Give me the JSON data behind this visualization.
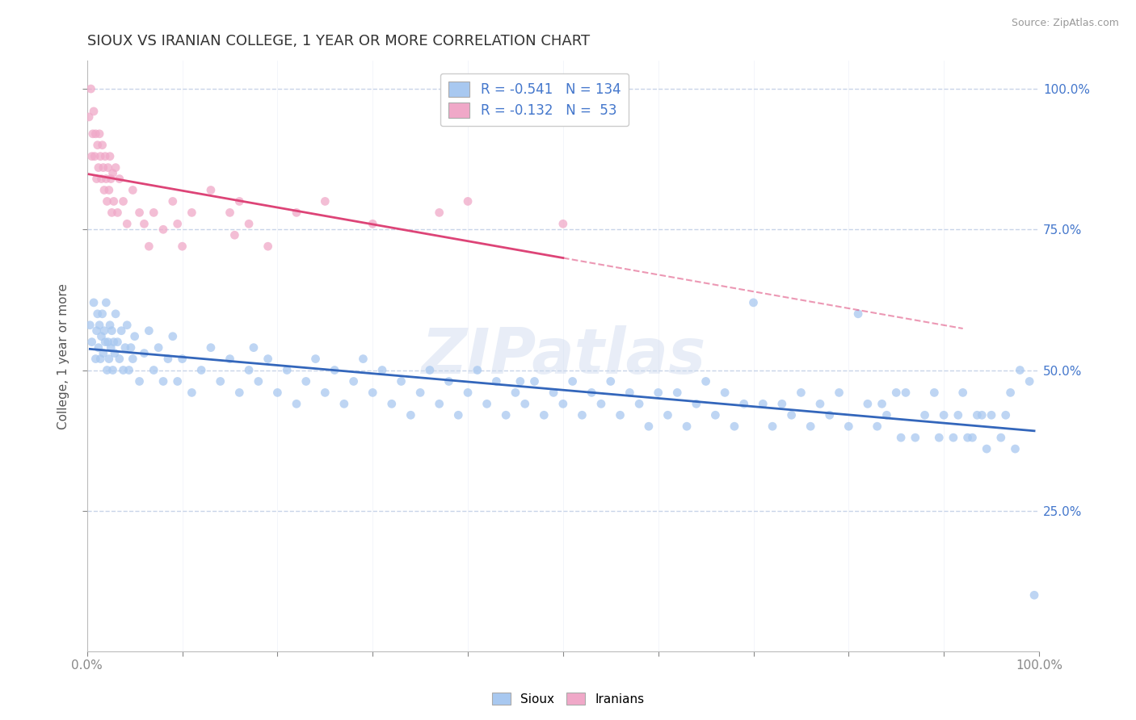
{
  "title": "SIOUX VS IRANIAN COLLEGE, 1 YEAR OR MORE CORRELATION CHART",
  "source_text": "Source: ZipAtlas.com",
  "ylabel": "College, 1 year or more",
  "xlim": [
    0.0,
    1.0
  ],
  "ylim": [
    0.0,
    1.05
  ],
  "x_tick_positions": [
    0.0,
    0.1,
    0.2,
    0.3,
    0.4,
    0.5,
    0.6,
    0.7,
    0.8,
    0.9,
    1.0
  ],
  "x_tick_labels": [
    "0.0%",
    "",
    "",
    "",
    "",
    "",
    "",
    "",
    "",
    "",
    "100.0%"
  ],
  "y_tick_positions": [
    0.25,
    0.5,
    0.75,
    1.0
  ],
  "y_tick_labels": [
    "25.0%",
    "50.0%",
    "75.0%",
    "100.0%"
  ],
  "watermark_text": "ZIPatlas",
  "legend_labels": [
    "Sioux",
    "Iranians"
  ],
  "blue_R": "-0.541",
  "blue_N": "134",
  "pink_R": "-0.132",
  "pink_N": "53",
  "blue_color": "#a8c8f0",
  "pink_color": "#f0a8c8",
  "blue_line_color": "#3366bb",
  "pink_line_color": "#dd4477",
  "background_color": "#ffffff",
  "grid_color": "#c8d4e8",
  "title_color": "#333333",
  "tick_color": "#4477cc",
  "blue_points": [
    [
      0.003,
      0.58
    ],
    [
      0.005,
      0.55
    ],
    [
      0.007,
      0.62
    ],
    [
      0.009,
      0.52
    ],
    [
      0.01,
      0.57
    ],
    [
      0.011,
      0.6
    ],
    [
      0.012,
      0.54
    ],
    [
      0.013,
      0.58
    ],
    [
      0.014,
      0.52
    ],
    [
      0.015,
      0.56
    ],
    [
      0.016,
      0.6
    ],
    [
      0.017,
      0.53
    ],
    [
      0.018,
      0.57
    ],
    [
      0.019,
      0.55
    ],
    [
      0.02,
      0.62
    ],
    [
      0.021,
      0.5
    ],
    [
      0.022,
      0.55
    ],
    [
      0.023,
      0.52
    ],
    [
      0.024,
      0.58
    ],
    [
      0.025,
      0.54
    ],
    [
      0.026,
      0.57
    ],
    [
      0.027,
      0.5
    ],
    [
      0.028,
      0.55
    ],
    [
      0.029,
      0.53
    ],
    [
      0.03,
      0.6
    ],
    [
      0.032,
      0.55
    ],
    [
      0.034,
      0.52
    ],
    [
      0.036,
      0.57
    ],
    [
      0.038,
      0.5
    ],
    [
      0.04,
      0.54
    ],
    [
      0.042,
      0.58
    ],
    [
      0.044,
      0.5
    ],
    [
      0.046,
      0.54
    ],
    [
      0.048,
      0.52
    ],
    [
      0.05,
      0.56
    ],
    [
      0.055,
      0.48
    ],
    [
      0.06,
      0.53
    ],
    [
      0.065,
      0.57
    ],
    [
      0.07,
      0.5
    ],
    [
      0.075,
      0.54
    ],
    [
      0.08,
      0.48
    ],
    [
      0.085,
      0.52
    ],
    [
      0.09,
      0.56
    ],
    [
      0.095,
      0.48
    ],
    [
      0.1,
      0.52
    ],
    [
      0.11,
      0.46
    ],
    [
      0.12,
      0.5
    ],
    [
      0.13,
      0.54
    ],
    [
      0.14,
      0.48
    ],
    [
      0.15,
      0.52
    ],
    [
      0.16,
      0.46
    ],
    [
      0.17,
      0.5
    ],
    [
      0.175,
      0.54
    ],
    [
      0.18,
      0.48
    ],
    [
      0.19,
      0.52
    ],
    [
      0.2,
      0.46
    ],
    [
      0.21,
      0.5
    ],
    [
      0.22,
      0.44
    ],
    [
      0.23,
      0.48
    ],
    [
      0.24,
      0.52
    ],
    [
      0.25,
      0.46
    ],
    [
      0.26,
      0.5
    ],
    [
      0.27,
      0.44
    ],
    [
      0.28,
      0.48
    ],
    [
      0.29,
      0.52
    ],
    [
      0.3,
      0.46
    ],
    [
      0.31,
      0.5
    ],
    [
      0.32,
      0.44
    ],
    [
      0.33,
      0.48
    ],
    [
      0.34,
      0.42
    ],
    [
      0.35,
      0.46
    ],
    [
      0.36,
      0.5
    ],
    [
      0.37,
      0.44
    ],
    [
      0.38,
      0.48
    ],
    [
      0.39,
      0.42
    ],
    [
      0.4,
      0.46
    ],
    [
      0.41,
      0.5
    ],
    [
      0.42,
      0.44
    ],
    [
      0.43,
      0.48
    ],
    [
      0.44,
      0.42
    ],
    [
      0.45,
      0.46
    ],
    [
      0.455,
      0.48
    ],
    [
      0.46,
      0.44
    ],
    [
      0.47,
      0.48
    ],
    [
      0.48,
      0.42
    ],
    [
      0.49,
      0.46
    ],
    [
      0.5,
      0.44
    ],
    [
      0.51,
      0.48
    ],
    [
      0.52,
      0.42
    ],
    [
      0.53,
      0.46
    ],
    [
      0.54,
      0.44
    ],
    [
      0.55,
      0.48
    ],
    [
      0.56,
      0.42
    ],
    [
      0.57,
      0.46
    ],
    [
      0.58,
      0.44
    ],
    [
      0.59,
      0.4
    ],
    [
      0.6,
      0.46
    ],
    [
      0.61,
      0.42
    ],
    [
      0.62,
      0.46
    ],
    [
      0.63,
      0.4
    ],
    [
      0.64,
      0.44
    ],
    [
      0.65,
      0.48
    ],
    [
      0.66,
      0.42
    ],
    [
      0.67,
      0.46
    ],
    [
      0.68,
      0.4
    ],
    [
      0.69,
      0.44
    ],
    [
      0.7,
      0.62
    ],
    [
      0.71,
      0.44
    ],
    [
      0.72,
      0.4
    ],
    [
      0.73,
      0.44
    ],
    [
      0.74,
      0.42
    ],
    [
      0.75,
      0.46
    ],
    [
      0.76,
      0.4
    ],
    [
      0.77,
      0.44
    ],
    [
      0.78,
      0.42
    ],
    [
      0.79,
      0.46
    ],
    [
      0.8,
      0.4
    ],
    [
      0.81,
      0.6
    ],
    [
      0.82,
      0.44
    ],
    [
      0.83,
      0.4
    ],
    [
      0.835,
      0.44
    ],
    [
      0.84,
      0.42
    ],
    [
      0.85,
      0.46
    ],
    [
      0.855,
      0.38
    ],
    [
      0.86,
      0.46
    ],
    [
      0.87,
      0.38
    ],
    [
      0.88,
      0.42
    ],
    [
      0.89,
      0.46
    ],
    [
      0.895,
      0.38
    ],
    [
      0.9,
      0.42
    ],
    [
      0.91,
      0.38
    ],
    [
      0.915,
      0.42
    ],
    [
      0.92,
      0.46
    ],
    [
      0.925,
      0.38
    ],
    [
      0.93,
      0.38
    ],
    [
      0.935,
      0.42
    ],
    [
      0.94,
      0.42
    ],
    [
      0.945,
      0.36
    ],
    [
      0.95,
      0.42
    ],
    [
      0.96,
      0.38
    ],
    [
      0.965,
      0.42
    ],
    [
      0.97,
      0.46
    ],
    [
      0.975,
      0.36
    ],
    [
      0.98,
      0.5
    ],
    [
      0.99,
      0.48
    ],
    [
      0.995,
      0.1
    ]
  ],
  "pink_points": [
    [
      0.002,
      0.95
    ],
    [
      0.004,
      1.0
    ],
    [
      0.005,
      0.88
    ],
    [
      0.006,
      0.92
    ],
    [
      0.007,
      0.96
    ],
    [
      0.008,
      0.88
    ],
    [
      0.009,
      0.92
    ],
    [
      0.01,
      0.84
    ],
    [
      0.011,
      0.9
    ],
    [
      0.012,
      0.86
    ],
    [
      0.013,
      0.92
    ],
    [
      0.014,
      0.88
    ],
    [
      0.015,
      0.84
    ],
    [
      0.016,
      0.9
    ],
    [
      0.017,
      0.86
    ],
    [
      0.018,
      0.82
    ],
    [
      0.019,
      0.88
    ],
    [
      0.02,
      0.84
    ],
    [
      0.021,
      0.8
    ],
    [
      0.022,
      0.86
    ],
    [
      0.023,
      0.82
    ],
    [
      0.024,
      0.88
    ],
    [
      0.025,
      0.84
    ],
    [
      0.026,
      0.78
    ],
    [
      0.027,
      0.85
    ],
    [
      0.028,
      0.8
    ],
    [
      0.03,
      0.86
    ],
    [
      0.032,
      0.78
    ],
    [
      0.034,
      0.84
    ],
    [
      0.038,
      0.8
    ],
    [
      0.042,
      0.76
    ],
    [
      0.048,
      0.82
    ],
    [
      0.055,
      0.78
    ],
    [
      0.06,
      0.76
    ],
    [
      0.065,
      0.72
    ],
    [
      0.07,
      0.78
    ],
    [
      0.08,
      0.75
    ],
    [
      0.09,
      0.8
    ],
    [
      0.095,
      0.76
    ],
    [
      0.1,
      0.72
    ],
    [
      0.11,
      0.78
    ],
    [
      0.13,
      0.82
    ],
    [
      0.15,
      0.78
    ],
    [
      0.155,
      0.74
    ],
    [
      0.16,
      0.8
    ],
    [
      0.17,
      0.76
    ],
    [
      0.19,
      0.72
    ],
    [
      0.22,
      0.78
    ],
    [
      0.25,
      0.8
    ],
    [
      0.3,
      0.76
    ],
    [
      0.37,
      0.78
    ],
    [
      0.4,
      0.8
    ],
    [
      0.5,
      0.76
    ]
  ]
}
